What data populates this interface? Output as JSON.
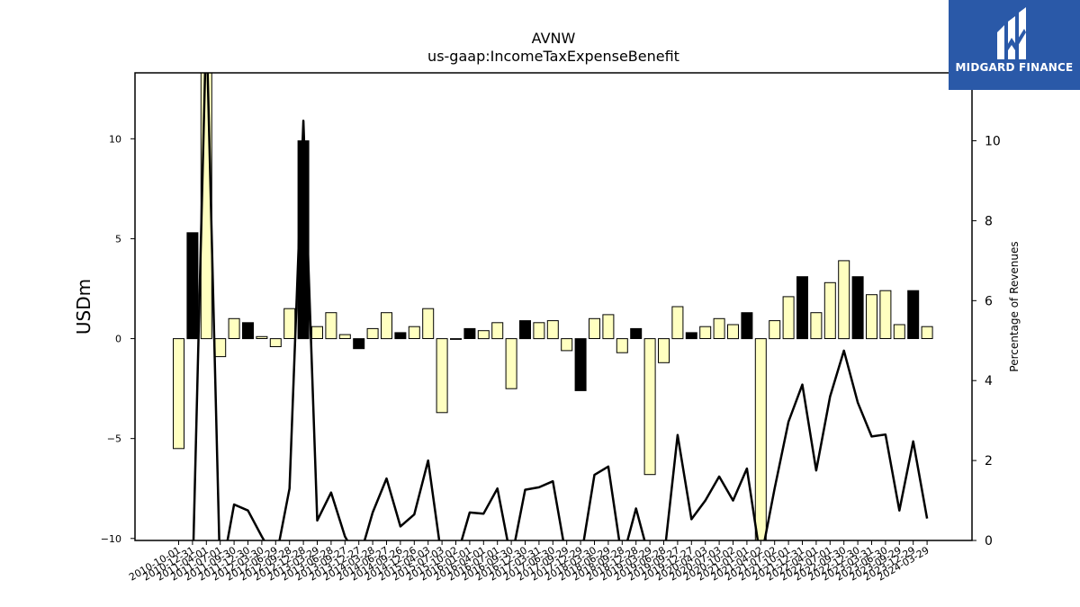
{
  "logo": {
    "text": "MIDGARD FINANCE"
  },
  "chart_data": {
    "type": "bar",
    "title": "AVNW",
    "subtitle": "us-gaap:IncomeTaxExpenseBenefit",
    "ylabel": "USDm",
    "y2label": "Percentage of Revenues",
    "ylim": [
      -10.1,
      13.3
    ],
    "y2lim": [
      0,
      11.7
    ],
    "yticks": [
      -10,
      -5,
      0,
      5,
      10
    ],
    "y2ticks": [
      0,
      2,
      4,
      6,
      8,
      10
    ],
    "colors": {
      "annual": "#000000",
      "quarterly": "#ffffc0",
      "line": "#000000"
    },
    "categories": [
      "2010-10-01",
      "2010-12-31",
      "2011-04-01",
      "2011-07-01",
      "2011-09-30",
      "2011-12-30",
      "2012-03-30",
      "2012-06-29",
      "2012-09-28",
      "2012-12-28",
      "2013-03-29",
      "2013-06-28",
      "2013-09-27",
      "2013-12-27",
      "2014-03-28",
      "2014-06-27",
      "2014-09-26",
      "2014-12-26",
      "2015-04-03",
      "2015-07-03",
      "2015-10-02",
      "2016-01-01",
      "2016-04-01",
      "2016-07-01",
      "2016-09-30",
      "2016-12-30",
      "2017-03-31",
      "2017-06-30",
      "2017-09-29",
      "2017-12-29",
      "2018-03-30",
      "2018-06-29",
      "2018-09-28",
      "2018-12-28",
      "2019-03-29",
      "2019-06-28",
      "2019-09-27",
      "2019-12-27",
      "2020-04-03",
      "2020-07-03",
      "2020-10-02",
      "2021-01-01",
      "2021-04-02",
      "2021-07-02",
      "2021-10-01",
      "2021-12-31",
      "2022-04-01",
      "2022-07-01",
      "2022-09-30",
      "2022-12-30",
      "2023-03-31",
      "2023-06-30",
      "2023-09-29",
      "2023-12-29",
      "2024-03-29"
    ],
    "values": [
      -5.5,
      5.3,
      13.5,
      -0.9,
      1.0,
      0.8,
      0.1,
      -0.4,
      1.5,
      9.9,
      0.6,
      1.3,
      0.2,
      -0.5,
      0.5,
      1.3,
      0.3,
      0.6,
      1.5,
      -3.7,
      0.0,
      0.5,
      0.4,
      0.8,
      -2.5,
      0.9,
      0.8,
      0.9,
      -0.6,
      -2.6,
      1.0,
      1.2,
      -0.7,
      0.5,
      -6.8,
      -1.2,
      1.6,
      0.3,
      0.6,
      1.0,
      0.7,
      1.3,
      -11.0,
      0.9,
      2.1,
      3.1,
      1.3,
      2.8,
      3.9,
      3.1,
      2.2,
      2.4,
      0.7,
      2.4,
      0.6
    ],
    "annual_flags": [
      false,
      true,
      false,
      false,
      false,
      true,
      false,
      false,
      false,
      true,
      false,
      false,
      false,
      true,
      false,
      false,
      true,
      false,
      false,
      false,
      true,
      true,
      false,
      false,
      false,
      true,
      false,
      false,
      false,
      true,
      false,
      false,
      false,
      true,
      false,
      false,
      false,
      true,
      false,
      false,
      false,
      true,
      false,
      false,
      false,
      true,
      false,
      false,
      false,
      true,
      false,
      false,
      false,
      true,
      false
    ],
    "series": [
      {
        "name": "",
        "values": [
          -1,
          -1,
          13,
          -1,
          0.9,
          0.75,
          0.1,
          -0.5,
          1.3,
          10.5,
          0.5,
          1.2,
          0.1,
          -0.5,
          0.7,
          1.55,
          0.35,
          0.65,
          2.0,
          -0.5,
          -0.5,
          0.7,
          0.67,
          1.3,
          -0.5,
          1.27,
          1.33,
          1.48,
          -0.5,
          -0.5,
          1.64,
          1.85,
          -0.5,
          0.8,
          -0.5,
          -0.5,
          2.64,
          0.53,
          1.0,
          1.6,
          1.0,
          1.8,
          -0.5,
          1.3,
          2.97,
          3.9,
          1.75,
          3.6,
          4.75,
          3.45,
          2.6,
          2.65,
          0.75,
          2.48,
          0.55
        ]
      }
    ]
  }
}
